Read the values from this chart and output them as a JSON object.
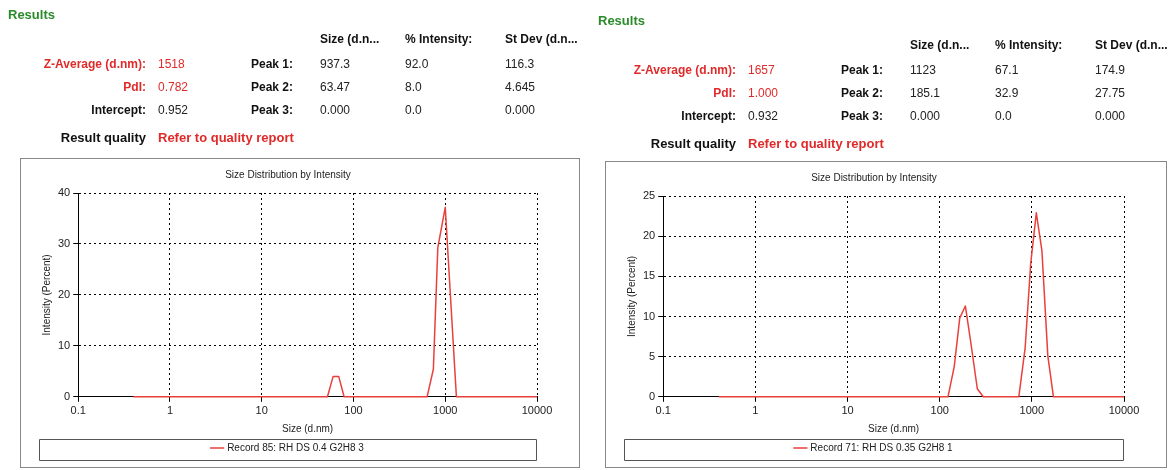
{
  "chart_data": [
    {
      "type": "other",
      "title": "Results",
      "annotations": [
        "Size (d.n...",
        "% Intensity:",
        "St Dev (d.n...",
        "Z-Average (d.nm):",
        "1518",
        "Peak 1:",
        "937.3",
        "92.0",
        "116.3",
        "PdI:",
        "0.782",
        "Peak 2:",
        "63.47",
        "8.0",
        "4.645",
        "Intercept:",
        "0.952",
        "Peak 3:",
        "0.000",
        "0.0",
        "0.000",
        "Result quality",
        "Refer to quality report"
      ]
    },
    {
      "type": "line",
      "title": "Size Distribution by Intensity",
      "xlabel": "Size (d.nm)",
      "ylabel": "Intensity (Percent)",
      "log": "x",
      "xlim": [
        0.1,
        10000
      ],
      "xticks": [
        0.1,
        1,
        10,
        100,
        1000,
        10000
      ],
      "ylim": [
        0,
        40
      ],
      "yticks": [
        0,
        10,
        20,
        30,
        40
      ],
      "grid": true,
      "legend": "bottom",
      "marker": "none",
      "line_style": "solid",
      "x": [
        0.4,
        52,
        60,
        69,
        79,
        634,
        742,
        830,
        1000,
        1129,
        1323,
        10000
      ],
      "series": [
        {
          "name": "Record 85: RH DS 0.4 G2H8 3",
          "color": "#e8413c",
          "values": [
            0,
            0,
            4.0,
            4.0,
            0,
            0,
            5.4,
            29.3,
            37.2,
            21,
            0,
            0
          ]
        }
      ]
    },
    {
      "type": "other",
      "title": "Results",
      "annotations": [
        "Size (d.n...",
        "% Intensity:",
        "St Dev (d.n...",
        "Z-Average (d.nm):",
        "1657",
        "Peak 1:",
        "1123",
        "67.1",
        "174.9",
        "PdI:",
        "1.000",
        "Peak 2:",
        "185.1",
        "32.9",
        "27.75",
        "Intercept:",
        "0.932",
        "Peak 3:",
        "0.000",
        "0.0",
        "0.000",
        "Result quality",
        "Refer to quality report"
      ]
    },
    {
      "type": "line",
      "title": "Size Distribution by Intensity",
      "xlabel": "Size (d.nm)",
      "ylabel": "Intensity (Percent)",
      "log": "x",
      "xlim": [
        0.1,
        10000
      ],
      "xticks": [
        0.1,
        1,
        10,
        100,
        1000,
        10000
      ],
      "ylim": [
        0,
        25
      ],
      "yticks": [
        0,
        5,
        10,
        15,
        20,
        25
      ],
      "grid": true,
      "legend": "bottom",
      "marker": "none",
      "line_style": "solid",
      "x": [
        0.4,
        123,
        144,
        165,
        190,
        218,
        256,
        297,
        722,
        846,
        972,
        1118,
        1286,
        1491,
        1715,
        10000
      ],
      "series": [
        {
          "name": "Record 71: RH DS 0.35 G2H8 1",
          "color": "#e8413c",
          "values": [
            0,
            0,
            3.8,
            9.8,
            11.3,
            6.7,
            1.0,
            0,
            0,
            6.1,
            16.6,
            22.9,
            18.2,
            5.1,
            0,
            0
          ]
        }
      ]
    }
  ]
}
